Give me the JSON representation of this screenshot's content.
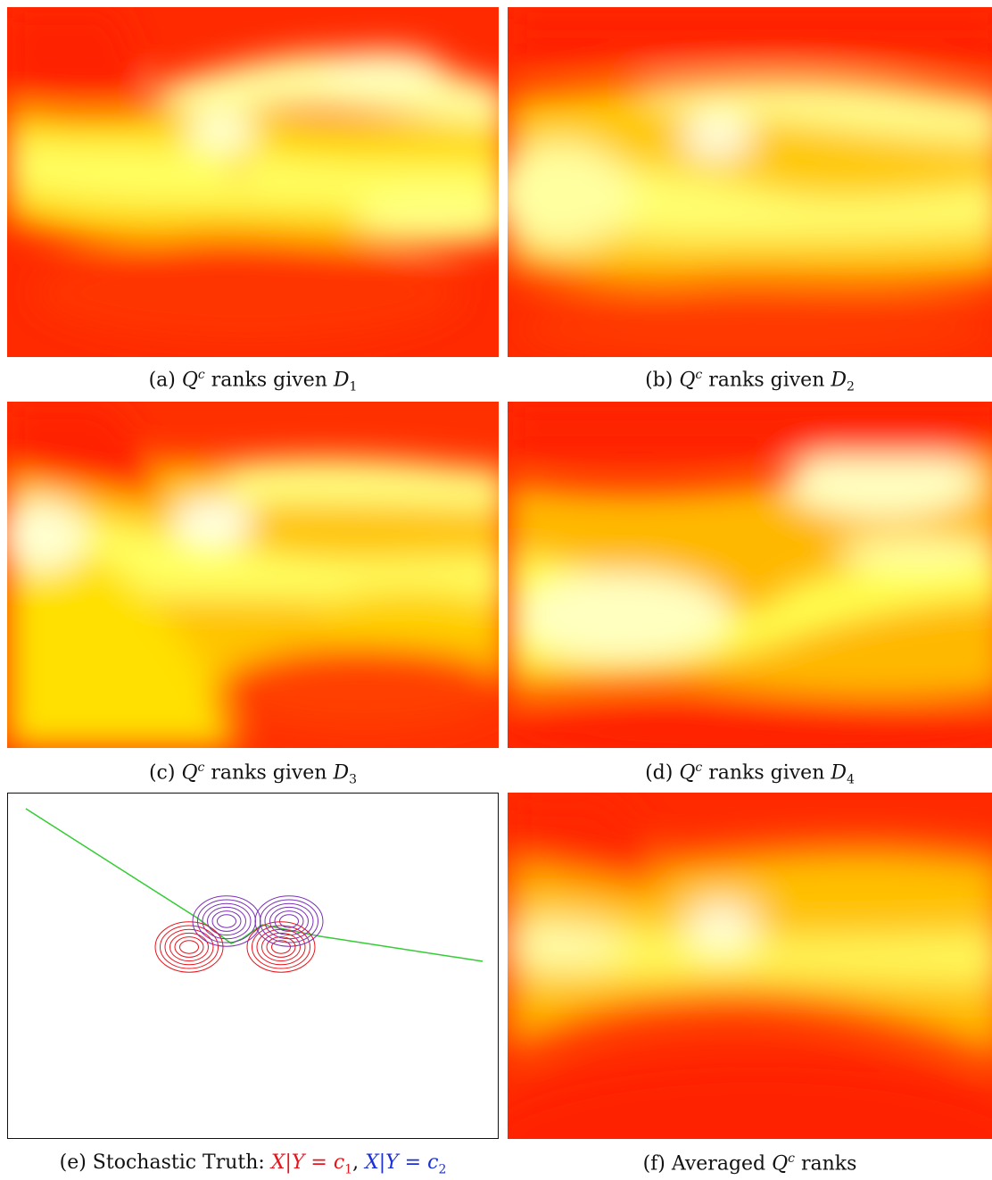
{
  "figure": {
    "panels": [
      {
        "id": "a",
        "caption_prefix": "(a) ",
        "caption_text": " ranks given ",
        "symbol": "Q",
        "sup": "c",
        "var": "D",
        "sub": "1"
      },
      {
        "id": "b",
        "caption_prefix": "(b) ",
        "caption_text": " ranks given ",
        "symbol": "Q",
        "sup": "c",
        "var": "D",
        "sub": "2"
      },
      {
        "id": "c",
        "caption_prefix": "(c) ",
        "caption_text": " ranks given ",
        "symbol": "Q",
        "sup": "c",
        "var": "D",
        "sub": "3"
      },
      {
        "id": "d",
        "caption_prefix": "(d) ",
        "caption_text": " ranks given ",
        "symbol": "Q",
        "sup": "c",
        "var": "D",
        "sub": "4"
      }
    ],
    "panel_e": {
      "caption_prefix": "(e) Stochastic Truth: ",
      "part1": "X|Y = c",
      "part1_sub": "1",
      "sep": ", ",
      "part2": "X|Y = c",
      "part2_sub": "2",
      "class1_color": "#e8141c",
      "class2_color": "#7a2fb8",
      "boundary_color": "#33cc33"
    },
    "panel_f": {
      "caption_prefix": "(f) Averaged ",
      "symbol": "Q",
      "sup": "c",
      "caption_text": " ranks"
    },
    "heatmap_colors": [
      "#ff1a00",
      "#ff6a00",
      "#ffb000",
      "#ffe800",
      "#ffffd0"
    ]
  }
}
